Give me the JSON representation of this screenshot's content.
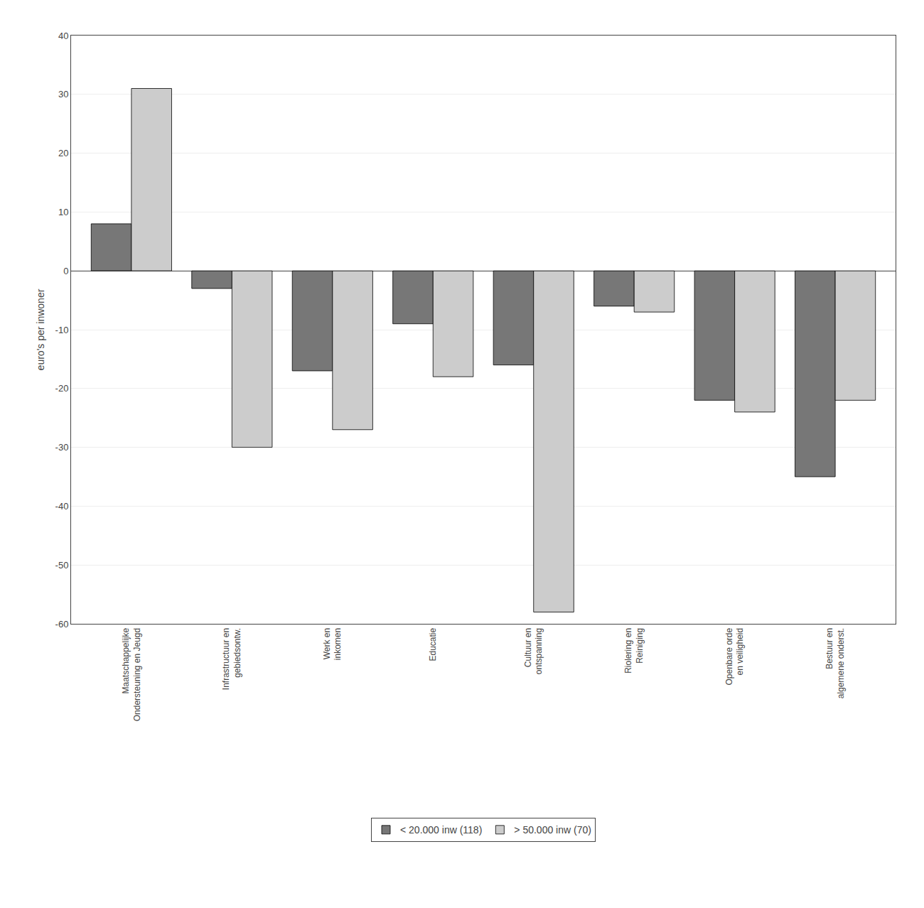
{
  "chart_data": {
    "type": "bar",
    "categories": [
      "Maatschappelijke\nOndersteuning en Jeugd",
      "Infrastructuur en\ngebiedsontw.",
      "Werk en\ninkomen",
      "Educatie",
      "Cultuur en\nontspanning",
      "Riolering en\nReiniging",
      "Openbare orde\nen veiligheid",
      "Bestuur en\nalgemene onderst."
    ],
    "series": [
      {
        "name": "< 20.000 inw (118)",
        "color": "#777777",
        "values": [
          8,
          -3,
          -17,
          -9,
          -16,
          -6,
          -22,
          -35
        ]
      },
      {
        "name": "> 50.000 inw (70)",
        "color": "#cccccc",
        "values": [
          31,
          -30,
          -27,
          -18,
          -58,
          -7,
          -24,
          -22
        ]
      }
    ],
    "ylabel": "euro's per inwoner",
    "ylim": [
      -60,
      40
    ],
    "yticks": [
      -60,
      -50,
      -40,
      -30,
      -20,
      -10,
      0,
      10,
      20,
      30,
      40
    ],
    "grid": true,
    "legend": "bottom"
  }
}
